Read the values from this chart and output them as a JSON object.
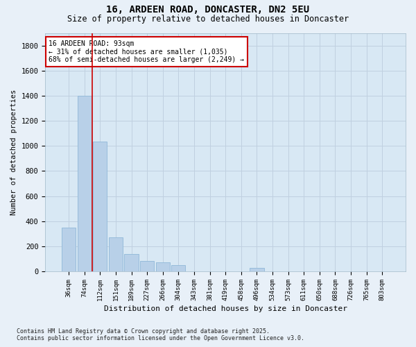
{
  "title_line1": "16, ARDEEN ROAD, DONCASTER, DN2 5EU",
  "title_line2": "Size of property relative to detached houses in Doncaster",
  "xlabel": "Distribution of detached houses by size in Doncaster",
  "ylabel": "Number of detached properties",
  "categories": [
    "36sqm",
    "74sqm",
    "112sqm",
    "151sqm",
    "189sqm",
    "227sqm",
    "266sqm",
    "304sqm",
    "343sqm",
    "381sqm",
    "419sqm",
    "458sqm",
    "496sqm",
    "534sqm",
    "573sqm",
    "611sqm",
    "650sqm",
    "688sqm",
    "726sqm",
    "765sqm",
    "803sqm"
  ],
  "values": [
    350,
    1400,
    1035,
    270,
    140,
    85,
    75,
    50,
    0,
    0,
    0,
    0,
    30,
    0,
    0,
    0,
    0,
    0,
    0,
    0,
    0
  ],
  "bar_color": "#b8d0e8",
  "bar_edge_color": "#90b8d8",
  "annotation_text": "16 ARDEEN ROAD: 93sqm\n← 31% of detached houses are smaller (1,035)\n68% of semi-detached houses are larger (2,249) →",
  "annotation_box_color": "#ffffff",
  "annotation_border_color": "#cc0000",
  "vline_color": "#cc0000",
  "vline_x": 1.52,
  "ylim": [
    0,
    1900
  ],
  "yticks": [
    0,
    200,
    400,
    600,
    800,
    1000,
    1200,
    1400,
    1600,
    1800
  ],
  "grid_color": "#c0d0e0",
  "bg_color": "#d8e8f4",
  "fig_color": "#e8f0f8",
  "footer": "Contains HM Land Registry data © Crown copyright and database right 2025.\nContains public sector information licensed under the Open Government Licence v3.0."
}
